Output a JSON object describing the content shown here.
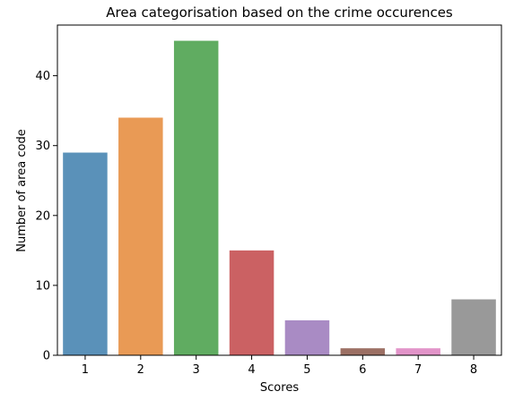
{
  "chart_data": {
    "type": "bar",
    "title": "Area categorisation based on the crime occurences",
    "xlabel": "Scores",
    "ylabel": "Number of area code",
    "categories": [
      "1",
      "2",
      "3",
      "4",
      "5",
      "6",
      "7",
      "8"
    ],
    "values": [
      29,
      34,
      45,
      15,
      5,
      1,
      1,
      8
    ],
    "colors": [
      "#5a91b9",
      "#e99a55",
      "#60ac61",
      "#cb6163",
      "#a98bc4",
      "#9c7064",
      "#e294c9",
      "#999999"
    ],
    "ylim": [
      0,
      47.25
    ],
    "yticks": [
      0,
      10,
      20,
      30,
      40
    ],
    "grid": false,
    "legend": "none"
  }
}
